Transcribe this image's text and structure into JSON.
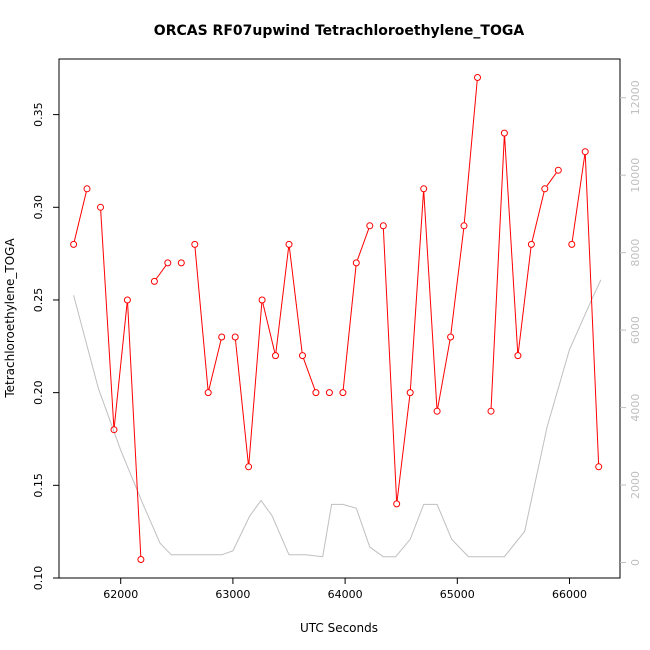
{
  "chart_data": {
    "type": "line",
    "title": "ORCAS RF07upwind Tetrachloroethylene_TOGA",
    "xlabel": "UTC Seconds",
    "ylabel": "Tetrachloroethylene_TOGA",
    "xlim": [
      61450,
      66450
    ],
    "ylim": [
      0.1,
      0.38
    ],
    "y2lim": [
      -400,
      13000
    ],
    "x_ticks": [
      62000,
      63000,
      64000,
      65000,
      66000
    ],
    "x_tick_labels": [
      "62000",
      "63000",
      "64000",
      "65000",
      "66000"
    ],
    "y_ticks": [
      0.1,
      0.15,
      0.2,
      0.25,
      0.3,
      0.35
    ],
    "y_tick_labels": [
      "0.10",
      "0.15",
      "0.20",
      "0.25",
      "0.30",
      "0.35"
    ],
    "y2_ticks": [
      0,
      2000,
      4000,
      6000,
      8000,
      10000,
      12000
    ],
    "y2_tick_labels": [
      "0",
      "2000",
      "4000",
      "6000",
      "8000",
      "10000",
      "12000"
    ],
    "grid": false,
    "series": [
      {
        "color": "#ff0000",
        "marker": "open-circle",
        "axis": "left",
        "x": [
          61580,
          61700,
          61820,
          61940,
          62060,
          62180,
          62300,
          62420,
          62540,
          62660,
          62780,
          62900,
          63020,
          63140,
          63260,
          63380,
          63500,
          63620,
          63740,
          63860,
          63980,
          64100,
          64220,
          64340,
          64460,
          64580,
          64700,
          64820,
          64940,
          65060,
          65180,
          65300,
          65420,
          65540,
          65660,
          65780,
          65900,
          66020,
          66140,
          66260
        ],
        "y": [
          0.28,
          0.31,
          0.3,
          0.18,
          0.25,
          0.11,
          0.26,
          0.27,
          0.27,
          0.28,
          0.2,
          0.23,
          0.23,
          0.16,
          0.25,
          0.22,
          0.28,
          0.22,
          0.2,
          0.2,
          0.2,
          0.27,
          0.29,
          0.29,
          0.14,
          0.2,
          0.31,
          0.19,
          0.23,
          0.29,
          0.37,
          0.19,
          0.34,
          0.22,
          0.28,
          0.31,
          0.32,
          0.28,
          0.33,
          0.16
        ],
        "gaps_after_index": [
          1,
          5,
          7,
          8,
          11,
          18,
          19,
          22,
          30,
          36
        ]
      },
      {
        "color": "#bfbfbf",
        "marker": "none",
        "axis": "right",
        "x": [
          61580,
          61800,
          62000,
          62200,
          62350,
          62450,
          62650,
          62800,
          62900,
          63000,
          63150,
          63250,
          63350,
          63500,
          63650,
          63800,
          63880,
          63980,
          64100,
          64220,
          64340,
          64450,
          64580,
          64700,
          64820,
          64950,
          65100,
          65300,
          65420,
          65600,
          65800,
          66000,
          66200,
          66280
        ],
        "y": [
          6900,
          4500,
          2900,
          1500,
          500,
          200,
          200,
          200,
          200,
          300,
          1200,
          1600,
          1200,
          200,
          200,
          150,
          1500,
          1500,
          1400,
          400,
          150,
          150,
          600,
          1500,
          1500,
          600,
          150,
          150,
          150,
          800,
          3500,
          5500,
          6800,
          7300
        ]
      }
    ]
  }
}
